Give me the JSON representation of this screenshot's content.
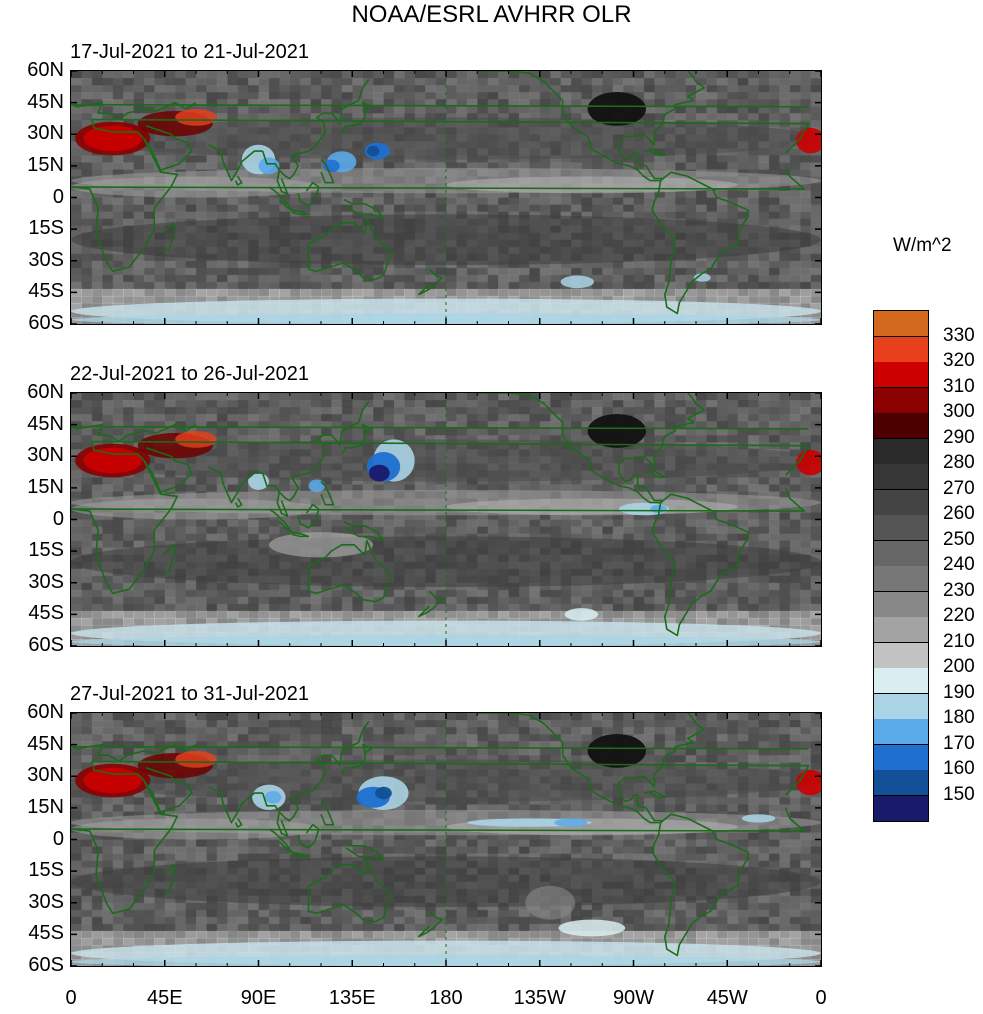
{
  "title": "NOAA/ESRL AVHRR OLR",
  "panels": [
    {
      "title": "17-Jul-2021 to 21-Jul-2021"
    },
    {
      "title": "22-Jul-2021 to 26-Jul-2021"
    },
    {
      "title": "27-Jul-2021 to 31-Jul-2021"
    }
  ],
  "lat_labels": [
    "60N",
    "45N",
    "30N",
    "15N",
    "0",
    "15S",
    "30S",
    "45S",
    "60S"
  ],
  "lon_labels": [
    "0",
    "45E",
    "90E",
    "135E",
    "180",
    "135W",
    "90W",
    "45W",
    "0"
  ],
  "colorbar": {
    "unit": "W/m^2",
    "levels": [
      "330",
      "320",
      "310",
      "300",
      "290",
      "280",
      "270",
      "260",
      "250",
      "240",
      "230",
      "220",
      "210",
      "200",
      "190",
      "180",
      "170",
      "160",
      "150"
    ],
    "colors": [
      "#d2691e",
      "#e8401c",
      "#cc0000",
      "#8b0000",
      "#4d0000",
      "#2a2a2a",
      "#363636",
      "#444444",
      "#555555",
      "#666666",
      "#777777",
      "#888888",
      "#a3a3a3",
      "#c2c2c2",
      "#d9eef0",
      "#aad4e6",
      "#5aa9e8",
      "#1f6fd1",
      "#124f96",
      "#1a1a6b"
    ]
  }
}
